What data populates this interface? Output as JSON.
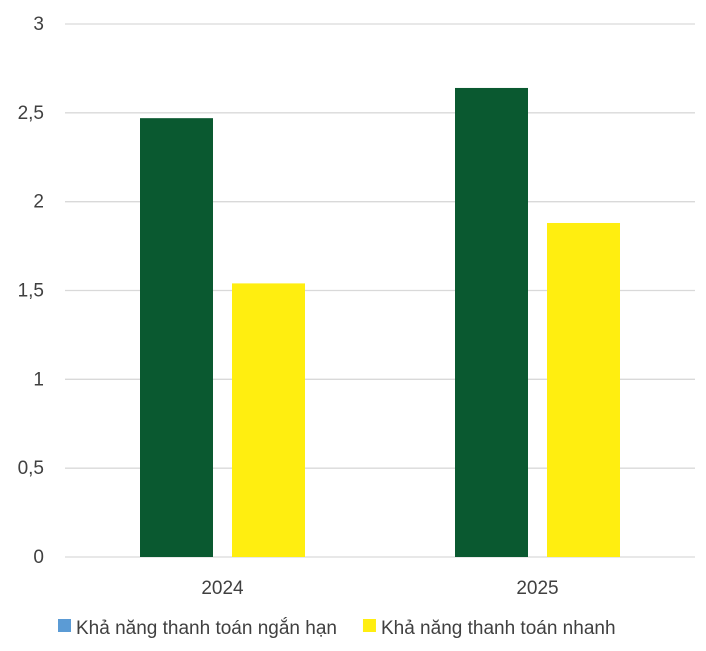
{
  "chart_data": {
    "type": "bar",
    "categories": [
      "2024",
      "2025"
    ],
    "series": [
      {
        "name": "Khả năng thanh toán ngắn hạn",
        "values": [
          2.47,
          2.64
        ],
        "bar_color": "#0a5930",
        "legend_color": "#5b9bd5"
      },
      {
        "name": "Khả năng thanh toán nhanh",
        "values": [
          1.54,
          1.88
        ],
        "bar_color": "#ffee10",
        "legend_color": "#ffee10"
      }
    ],
    "ylim": [
      0,
      3
    ],
    "yticks": [
      {
        "value": 0,
        "label": "0"
      },
      {
        "value": 0.5,
        "label": "0,5"
      },
      {
        "value": 1,
        "label": "1"
      },
      {
        "value": 1.5,
        "label": "1,5"
      },
      {
        "value": 2,
        "label": "2"
      },
      {
        "value": 2.5,
        "label": "2,5"
      },
      {
        "value": 3,
        "label": "3"
      }
    ],
    "grid": true,
    "legend_position": "bottom",
    "colors": {
      "grid": "#d9d9d9",
      "text": "#404040"
    }
  }
}
